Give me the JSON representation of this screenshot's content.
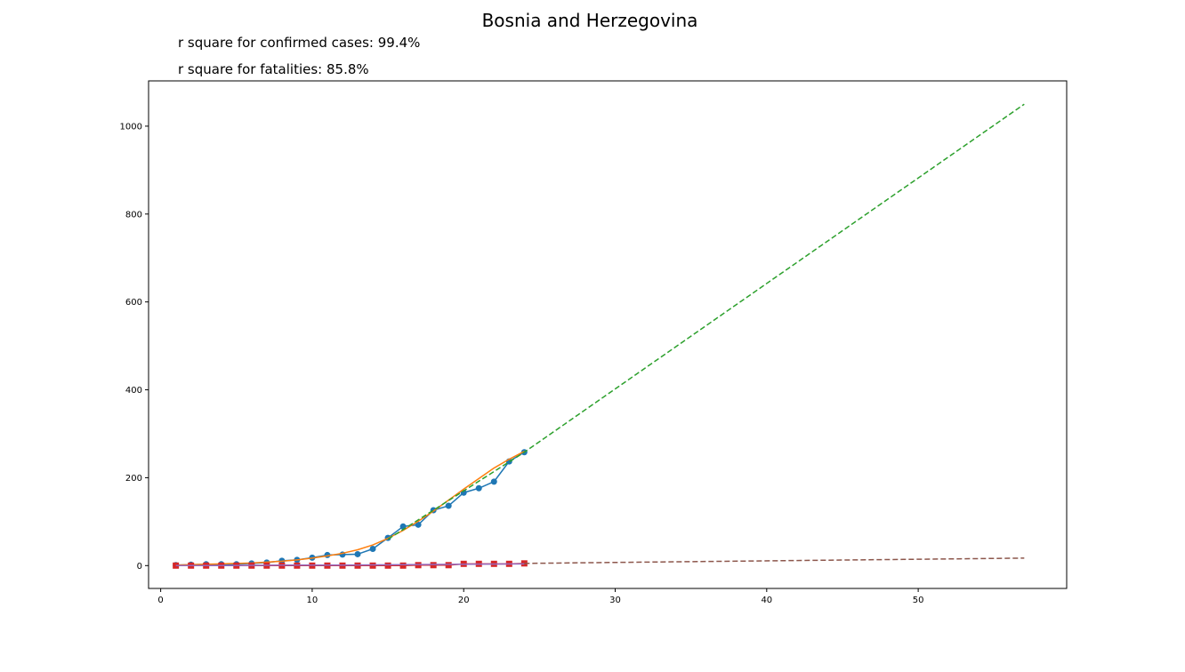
{
  "chart_data": {
    "type": "line",
    "title": "Bosnia and Herzegovina",
    "annotations": [
      "r square for confirmed cases: 99.4%",
      "r square for fatalities: 85.8%"
    ],
    "xlabel": "",
    "ylabel": "",
    "xlim": [
      -0.8,
      59.8
    ],
    "ylim": [
      -52,
      1103
    ],
    "x_ticks": [
      0,
      10,
      20,
      30,
      40,
      50
    ],
    "y_ticks": [
      0,
      200,
      400,
      600,
      800,
      1000
    ],
    "grid": false,
    "legend": "none",
    "series": [
      {
        "role": "confirmed-observed",
        "style": "line-markers-circle",
        "color": "#1f77b4",
        "x": [
          1,
          2,
          3,
          4,
          5,
          6,
          7,
          8,
          9,
          10,
          11,
          12,
          13,
          14,
          15,
          16,
          17,
          18,
          19,
          20,
          21,
          22,
          23,
          24
        ],
        "y": [
          1,
          2,
          3,
          3,
          3,
          5,
          7,
          11,
          13,
          18,
          24,
          25,
          26,
          38,
          63,
          89,
          93,
          126,
          136,
          166,
          176,
          191,
          237,
          258
        ]
      },
      {
        "role": "confirmed-fit",
        "style": "line",
        "color": "#ff7f0e",
        "x": [
          1,
          2,
          3,
          4,
          5,
          6,
          7,
          8,
          9,
          10,
          11,
          12,
          13,
          14,
          15,
          16,
          17,
          18,
          19,
          20,
          21,
          22,
          23,
          24
        ],
        "y": [
          1,
          2,
          3,
          4,
          5,
          6,
          8,
          10,
          13,
          17,
          22,
          28,
          36,
          47,
          62,
          80,
          101,
          124,
          149,
          174,
          198,
          222,
          242,
          260
        ]
      },
      {
        "role": "confirmed-projection",
        "style": "dashed",
        "color": "#2ca02c",
        "x": [
          15,
          24,
          57
        ],
        "y": [
          60,
          258,
          1050
        ]
      },
      {
        "role": "fatalities-observed",
        "style": "line-markers-square",
        "color": "#d62728",
        "x": [
          1,
          2,
          3,
          4,
          5,
          6,
          7,
          8,
          9,
          10,
          11,
          12,
          13,
          14,
          15,
          16,
          17,
          18,
          19,
          20,
          21,
          22,
          23,
          24
        ],
        "y": [
          0,
          0,
          0,
          0,
          0,
          0,
          0,
          0,
          0,
          0,
          0,
          0,
          0,
          0,
          0,
          0,
          1,
          1,
          1,
          4,
          4,
          4,
          4,
          5
        ]
      },
      {
        "role": "fatalities-fit",
        "style": "line",
        "color": "#9467bd",
        "x": [
          1,
          4,
          8,
          12,
          16,
          20,
          24
        ],
        "y": [
          0,
          0,
          1,
          1,
          2,
          3,
          4
        ]
      },
      {
        "role": "fatalities-projection",
        "style": "dashed",
        "color": "#8c564b",
        "x": [
          24,
          57
        ],
        "y": [
          5,
          17
        ]
      }
    ]
  }
}
